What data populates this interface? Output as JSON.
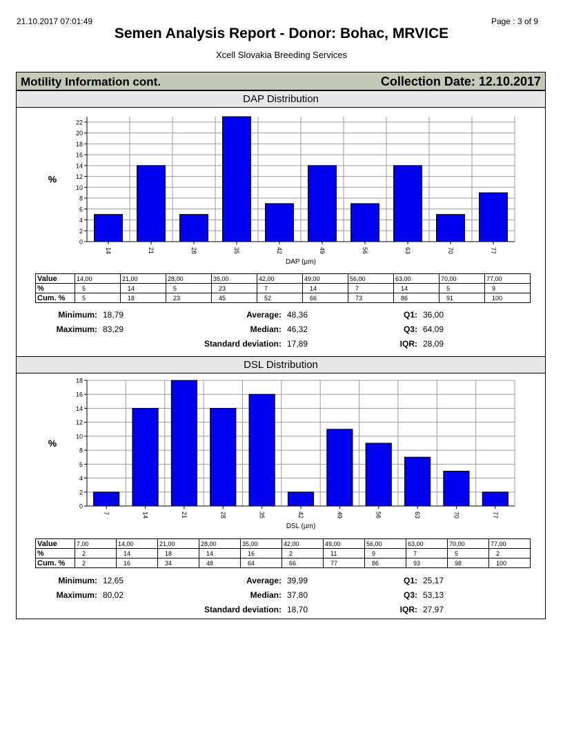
{
  "header": {
    "timestamp": "21.10.2017 07:01:49",
    "page": "Page :   3 of 9",
    "title": "Semen Analysis Report - Donor: Bohac, MRVICE",
    "subtitle": "Xcell Slovakia Breeding Services"
  },
  "section": {
    "title": "Motility Information cont.",
    "collection_date": "Collection Date: 12.10.2017"
  },
  "chart_data": [
    {
      "type": "bar",
      "title": "DAP Distribution",
      "xlabel": "DAP (µm)",
      "ylabel": "%",
      "categories": [
        "14",
        "21",
        "28",
        "35",
        "42",
        "49",
        "56",
        "63",
        "70",
        "77"
      ],
      "values": [
        5,
        14,
        5,
        23,
        7,
        14,
        7,
        14,
        5,
        9
      ],
      "ylim": [
        0,
        23
      ],
      "yticks": [
        0,
        2,
        4,
        6,
        8,
        10,
        12,
        14,
        16,
        18,
        20,
        22
      ],
      "bar_color": "#0000ee"
    },
    {
      "type": "bar",
      "title": "DSL Distribution",
      "xlabel": "DSL (µm)",
      "ylabel": "%",
      "categories": [
        "7",
        "14",
        "21",
        "28",
        "35",
        "42",
        "49",
        "56",
        "63",
        "70",
        "77"
      ],
      "values": [
        2,
        14,
        18,
        14,
        16,
        2,
        11,
        9,
        7,
        5,
        2
      ],
      "ylim": [
        0,
        18
      ],
      "yticks": [
        0,
        2,
        4,
        6,
        8,
        10,
        12,
        14,
        16,
        18
      ],
      "bar_color": "#0000ee"
    }
  ],
  "dap": {
    "table": {
      "row_labels": [
        "Value",
        "%",
        "Cum. %"
      ],
      "values": [
        "14,00",
        "21,00",
        "28,00",
        "35,00",
        "42,00",
        "49,00",
        "56,00",
        "63,00",
        "70,00",
        "77,00"
      ],
      "pct": [
        "5",
        "14",
        "5",
        "23",
        "7",
        "14",
        "7",
        "14",
        "5",
        "9"
      ],
      "cum": [
        "5",
        "18",
        "23",
        "45",
        "52",
        "66",
        "73",
        "86",
        "91",
        "100"
      ]
    },
    "stats": {
      "minimum_label": "Minimum:",
      "minimum": "18,79",
      "maximum_label": "Maximum:",
      "maximum": "83,29",
      "average_label": "Average:",
      "average": "48,36",
      "median_label": "Median:",
      "median": "46,32",
      "std_label": "Standard deviation:",
      "std": "17,89",
      "q1_label": "Q1:",
      "q1": "36,00",
      "q3_label": "Q3:",
      "q3": "64,09",
      "iqr_label": "IQR:",
      "iqr": "28,09"
    }
  },
  "dsl": {
    "table": {
      "row_labels": [
        "Value",
        "%",
        "Cum. %"
      ],
      "values": [
        "7,00",
        "14,00",
        "21,00",
        "28,00",
        "35,00",
        "42,00",
        "49,00",
        "56,00",
        "63,00",
        "70,00",
        "77,00"
      ],
      "pct": [
        "2",
        "14",
        "18",
        "14",
        "16",
        "2",
        "11",
        "9",
        "7",
        "5",
        "2"
      ],
      "cum": [
        "2",
        "16",
        "34",
        "48",
        "64",
        "66",
        "77",
        "86",
        "93",
        "98",
        "100"
      ]
    },
    "stats": {
      "minimum_label": "Minimum:",
      "minimum": "12,65",
      "maximum_label": "Maximum:",
      "maximum": "80,02",
      "average_label": "Average:",
      "average": "39,99",
      "median_label": "Median:",
      "median": "37,80",
      "std_label": "Standard deviation:",
      "std": "18,70",
      "q1_label": "Q1:",
      "q1": "25,17",
      "q3_label": "Q3:",
      "q3": "53,13",
      "iqr_label": "IQR:",
      "iqr": "27,97"
    }
  }
}
